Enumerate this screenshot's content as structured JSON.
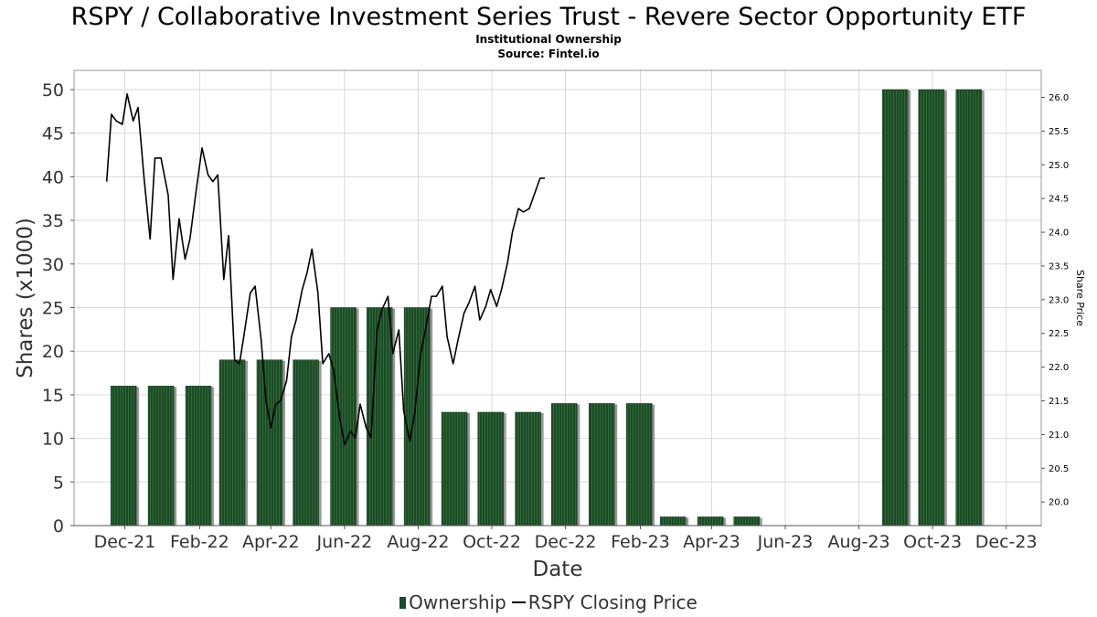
{
  "header": {
    "title": "RSPY / Collaborative Investment Series Trust - Revere Sector Opportunity ETF",
    "subtitle1": "Institutional Ownership",
    "subtitle2": "Source: Fintel.io"
  },
  "legend": {
    "ownership": "Ownership",
    "price": "RSPY Closing Price"
  },
  "colors": {
    "bar_fill": "#1d4a26",
    "bar_shadow": "#999999",
    "line": "#000000",
    "grid": "#d9d9d9"
  },
  "chart_data": {
    "type": "bar",
    "xlabel": "Date",
    "ylabel": "Shares (x1000)",
    "y2label": "Share Price",
    "xlim": [
      "2021-10-20",
      "2023-12-30"
    ],
    "ylim": [
      0,
      52.2
    ],
    "y2lim": [
      19.65,
      26.4
    ],
    "x_ticks": [
      {
        "date": "2021-12-01",
        "label": "Dec-21"
      },
      {
        "date": "2022-02-01",
        "label": "Feb-22"
      },
      {
        "date": "2022-04-01",
        "label": "Apr-22"
      },
      {
        "date": "2022-06-01",
        "label": "Jun-22"
      },
      {
        "date": "2022-08-01",
        "label": "Aug-22"
      },
      {
        "date": "2022-10-01",
        "label": "Oct-22"
      },
      {
        "date": "2022-12-01",
        "label": "Dec-22"
      },
      {
        "date": "2023-02-01",
        "label": "Feb-23"
      },
      {
        "date": "2023-04-01",
        "label": "Apr-23"
      },
      {
        "date": "2023-06-01",
        "label": "Jun-23"
      },
      {
        "date": "2023-08-01",
        "label": "Aug-23"
      },
      {
        "date": "2023-10-01",
        "label": "Oct-23"
      },
      {
        "date": "2023-12-01",
        "label": "Dec-23"
      }
    ],
    "y_ticks": [
      "0",
      "5",
      "10",
      "15",
      "20",
      "25",
      "30",
      "35",
      "40",
      "45",
      "50"
    ],
    "y2_ticks": [
      "20.0",
      "20.5",
      "21.0",
      "21.5",
      "22.0",
      "22.5",
      "23.0",
      "23.5",
      "24.0",
      "24.5",
      "25.0",
      "25.5",
      "26.0"
    ],
    "series": [
      {
        "name": "Ownership",
        "type": "bar",
        "points": [
          {
            "date": "2021-11-30",
            "value": 16
          },
          {
            "date": "2021-12-31",
            "value": 16
          },
          {
            "date": "2022-01-31",
            "value": 16
          },
          {
            "date": "2022-02-28",
            "value": 19
          },
          {
            "date": "2022-03-31",
            "value": 19
          },
          {
            "date": "2022-04-30",
            "value": 19
          },
          {
            "date": "2022-05-31",
            "value": 25
          },
          {
            "date": "2022-06-30",
            "value": 25
          },
          {
            "date": "2022-07-31",
            "value": 25
          },
          {
            "date": "2022-08-31",
            "value": 13
          },
          {
            "date": "2022-09-30",
            "value": 13
          },
          {
            "date": "2022-10-31",
            "value": 13
          },
          {
            "date": "2022-11-30",
            "value": 14
          },
          {
            "date": "2022-12-31",
            "value": 14
          },
          {
            "date": "2023-01-31",
            "value": 14
          },
          {
            "date": "2023-02-28",
            "value": 1
          },
          {
            "date": "2023-03-31",
            "value": 1
          },
          {
            "date": "2023-04-30",
            "value": 1
          },
          {
            "date": "2023-08-31",
            "value": 50
          },
          {
            "date": "2023-09-30",
            "value": 50
          },
          {
            "date": "2023-10-31",
            "value": 50
          }
        ]
      },
      {
        "name": "RSPY Closing Price",
        "type": "line",
        "axis": "right",
        "points": [
          {
            "date": "2021-11-16",
            "value": 24.75
          },
          {
            "date": "2021-11-20",
            "value": 25.75
          },
          {
            "date": "2021-11-24",
            "value": 25.65
          },
          {
            "date": "2021-11-29",
            "value": 25.6
          },
          {
            "date": "2021-12-03",
            "value": 26.05
          },
          {
            "date": "2021-12-08",
            "value": 25.65
          },
          {
            "date": "2021-12-12",
            "value": 25.85
          },
          {
            "date": "2021-12-17",
            "value": 24.8
          },
          {
            "date": "2021-12-22",
            "value": 23.9
          },
          {
            "date": "2021-12-26",
            "value": 25.1
          },
          {
            "date": "2021-12-31",
            "value": 25.1
          },
          {
            "date": "2022-01-06",
            "value": 24.55
          },
          {
            "date": "2022-01-10",
            "value": 23.3
          },
          {
            "date": "2022-01-15",
            "value": 24.2
          },
          {
            "date": "2022-01-20",
            "value": 23.6
          },
          {
            "date": "2022-01-24",
            "value": 23.9
          },
          {
            "date": "2022-01-29",
            "value": 24.6
          },
          {
            "date": "2022-02-03",
            "value": 25.25
          },
          {
            "date": "2022-02-08",
            "value": 24.85
          },
          {
            "date": "2022-02-12",
            "value": 24.75
          },
          {
            "date": "2022-02-16",
            "value": 24.85
          },
          {
            "date": "2022-02-21",
            "value": 23.3
          },
          {
            "date": "2022-02-25",
            "value": 23.95
          },
          {
            "date": "2022-03-02",
            "value": 22.1
          },
          {
            "date": "2022-03-06",
            "value": 22.05
          },
          {
            "date": "2022-03-10",
            "value": 22.5
          },
          {
            "date": "2022-03-15",
            "value": 23.1
          },
          {
            "date": "2022-03-19",
            "value": 23.2
          },
          {
            "date": "2022-03-24",
            "value": 22.4
          },
          {
            "date": "2022-03-28",
            "value": 21.5
          },
          {
            "date": "2022-04-01",
            "value": 21.1
          },
          {
            "date": "2022-04-05",
            "value": 21.45
          },
          {
            "date": "2022-04-09",
            "value": 21.5
          },
          {
            "date": "2022-04-14",
            "value": 21.8
          },
          {
            "date": "2022-04-18",
            "value": 22.45
          },
          {
            "date": "2022-04-22",
            "value": 22.7
          },
          {
            "date": "2022-04-27",
            "value": 23.15
          },
          {
            "date": "2022-05-01",
            "value": 23.4
          },
          {
            "date": "2022-05-05",
            "value": 23.75
          },
          {
            "date": "2022-05-10",
            "value": 23.1
          },
          {
            "date": "2022-05-14",
            "value": 22.05
          },
          {
            "date": "2022-05-19",
            "value": 22.2
          },
          {
            "date": "2022-05-23",
            "value": 21.95
          },
          {
            "date": "2022-05-28",
            "value": 21.25
          },
          {
            "date": "2022-06-01",
            "value": 20.85
          },
          {
            "date": "2022-06-06",
            "value": 21.05
          },
          {
            "date": "2022-06-10",
            "value": 20.95
          },
          {
            "date": "2022-06-14",
            "value": 21.45
          },
          {
            "date": "2022-06-19",
            "value": 21.1
          },
          {
            "date": "2022-06-23",
            "value": 20.95
          },
          {
            "date": "2022-06-28",
            "value": 22.55
          },
          {
            "date": "2022-07-02",
            "value": 22.85
          },
          {
            "date": "2022-07-07",
            "value": 23.05
          },
          {
            "date": "2022-07-11",
            "value": 22.2
          },
          {
            "date": "2022-07-16",
            "value": 22.55
          },
          {
            "date": "2022-07-20",
            "value": 21.35
          },
          {
            "date": "2022-07-25",
            "value": 20.9
          },
          {
            "date": "2022-07-29",
            "value": 21.3
          },
          {
            "date": "2022-08-03",
            "value": 22.2
          },
          {
            "date": "2022-08-07",
            "value": 22.55
          },
          {
            "date": "2022-08-12",
            "value": 23.05
          },
          {
            "date": "2022-08-16",
            "value": 23.05
          },
          {
            "date": "2022-08-21",
            "value": 23.2
          },
          {
            "date": "2022-08-25",
            "value": 22.45
          },
          {
            "date": "2022-08-30",
            "value": 22.05
          },
          {
            "date": "2022-09-03",
            "value": 22.4
          },
          {
            "date": "2022-09-08",
            "value": 22.8
          },
          {
            "date": "2022-09-12",
            "value": 22.95
          },
          {
            "date": "2022-09-17",
            "value": 23.2
          },
          {
            "date": "2022-09-21",
            "value": 22.7
          },
          {
            "date": "2022-09-26",
            "value": 22.9
          },
          {
            "date": "2022-09-30",
            "value": 23.15
          },
          {
            "date": "2022-10-05",
            "value": 22.9
          },
          {
            "date": "2022-10-09",
            "value": 23.15
          },
          {
            "date": "2022-10-14",
            "value": 23.55
          },
          {
            "date": "2022-10-18",
            "value": 24.0
          },
          {
            "date": "2022-10-23",
            "value": 24.35
          },
          {
            "date": "2022-10-27",
            "value": 24.3
          },
          {
            "date": "2022-11-01",
            "value": 24.35
          },
          {
            "date": "2022-11-05",
            "value": 24.55
          },
          {
            "date": "2022-11-10",
            "value": 24.8
          },
          {
            "date": "2022-11-14",
            "value": 24.8
          }
        ]
      }
    ]
  }
}
